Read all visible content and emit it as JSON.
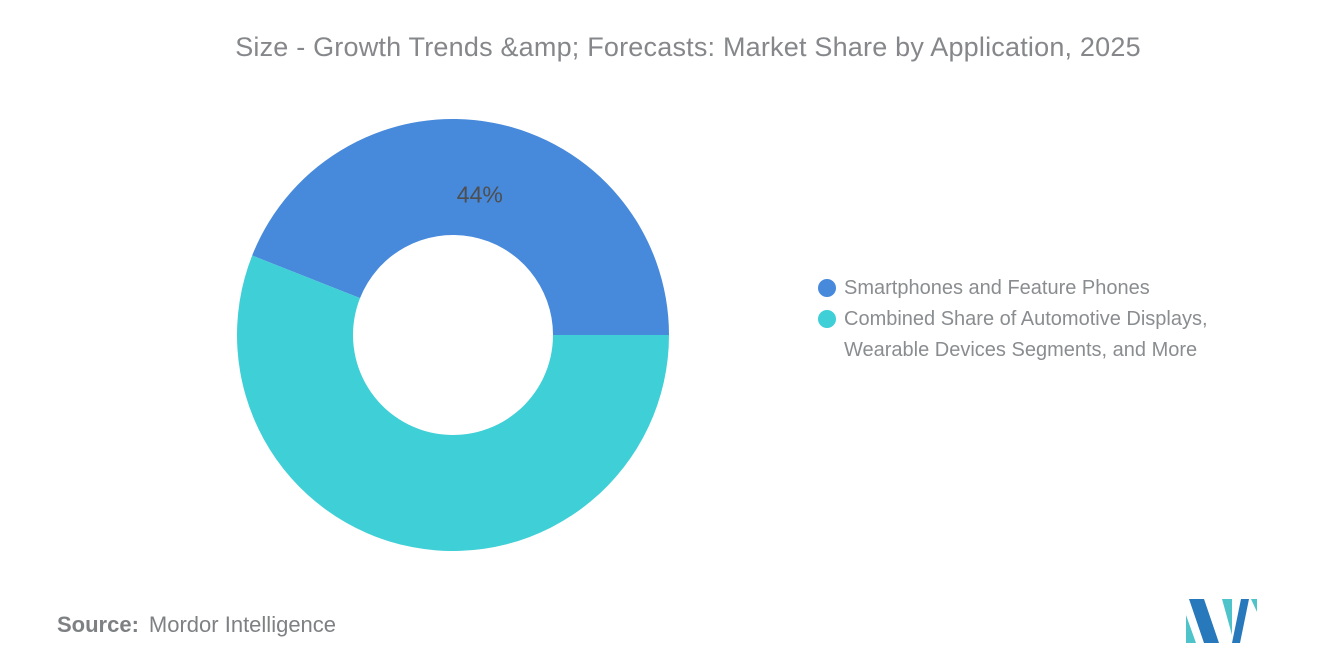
{
  "title": "Size - Growth Trends &amp; Forecasts: Market Share by Application, 2025",
  "chart_data": {
    "type": "pie",
    "subtype": "donut",
    "title": "Size - Growth Trends &amp; Forecasts: Market Share by Application, 2025",
    "series": [
      {
        "name": "Smartphones and Feature Phones",
        "value": 44,
        "color": "#4789db",
        "data_label": "44%"
      },
      {
        "name": "Combined Share of Automotive Displays, Wearable Devices Segments, and More",
        "value": 56,
        "color": "#3fcfd6",
        "data_label": ""
      }
    ],
    "start_angle_deg": -68.4,
    "inner_radius_ratio": 0.463,
    "label_radius_ratio": 0.663,
    "label_color": "#4e4e4e",
    "label_font_size": 23,
    "legend_position": "right",
    "grid": false
  },
  "legend": {
    "items": [
      {
        "color": "#4789db",
        "lines": [
          "Smartphones and Feature Phones"
        ]
      },
      {
        "color": "#3fcfd6",
        "lines": [
          "Combined Share of Automotive Displays,",
          "Wearable Devices Segments, and More"
        ]
      }
    ]
  },
  "source": {
    "label": "Source:",
    "value": "Mordor Intelligence"
  },
  "logo": {
    "name": "Mordor Intelligence logo",
    "teal": "#4ec4ca",
    "blue": "#2878bc"
  }
}
